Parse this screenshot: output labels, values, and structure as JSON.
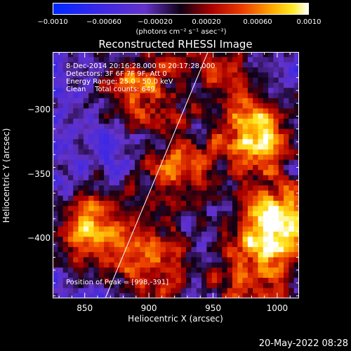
{
  "colorbar": {
    "tick_labels": [
      "−0.0010",
      "−0.00060",
      "−0.00020",
      "0.00020",
      "0.00060",
      "0.0010"
    ],
    "tick_values": [
      -0.001,
      -0.0006,
      -0.0002,
      0.0002,
      0.0006,
      0.001
    ],
    "unit_label": "(photons cm⁻² s⁻¹ asec⁻²)",
    "range": [
      -0.001,
      0.001
    ]
  },
  "chart_data": {
    "type": "heatmap",
    "title": "Reconstructed RHESSI Image",
    "xlabel": "Heliocentric X (arcsec)",
    "ylabel": "Heliocentric Y (arcsec)",
    "xlim": [
      825,
      1017
    ],
    "ylim": [
      -447,
      -255
    ],
    "x_ticks": [
      850,
      900,
      950,
      1000
    ],
    "x_tick_labels": [
      "850",
      "900",
      "950",
      "1000"
    ],
    "y_ticks": [
      -300,
      -350,
      -400
    ],
    "y_tick_labels": [
      "−300",
      "−350",
      "−400"
    ],
    "info_lines": [
      "8-Dec-2014 20:16:28.000 to 20:17:28.000",
      "Detectors: 3F 6F 7F 9F, Att 0",
      "Energy Range: 25.0 - 50.0 keV",
      "Clean    Total counts: 649."
    ],
    "peak_label": "Position of Peak = [998,-391]",
    "peak": [
      998,
      -391
    ],
    "limb_line": [
      [
        866,
        -447
      ],
      [
        946,
        -255
      ]
    ],
    "sources": [
      {
        "x": 998,
        "y": -391,
        "strength": 1.0
      },
      {
        "x": 985,
        "y": -320,
        "strength": 0.8
      },
      {
        "x": 893,
        "y": -283,
        "strength": 0.6
      },
      {
        "x": 855,
        "y": -395,
        "strength": 0.7
      },
      {
        "x": 905,
        "y": -420,
        "strength": 0.55
      },
      {
        "x": 925,
        "y": -348,
        "strength": 0.55
      },
      {
        "x": 975,
        "y": -440,
        "strength": 0.45
      },
      {
        "x": 950,
        "y": -265,
        "strength": 0.4
      }
    ]
  },
  "timestamp": "20-May-2022 08:28"
}
